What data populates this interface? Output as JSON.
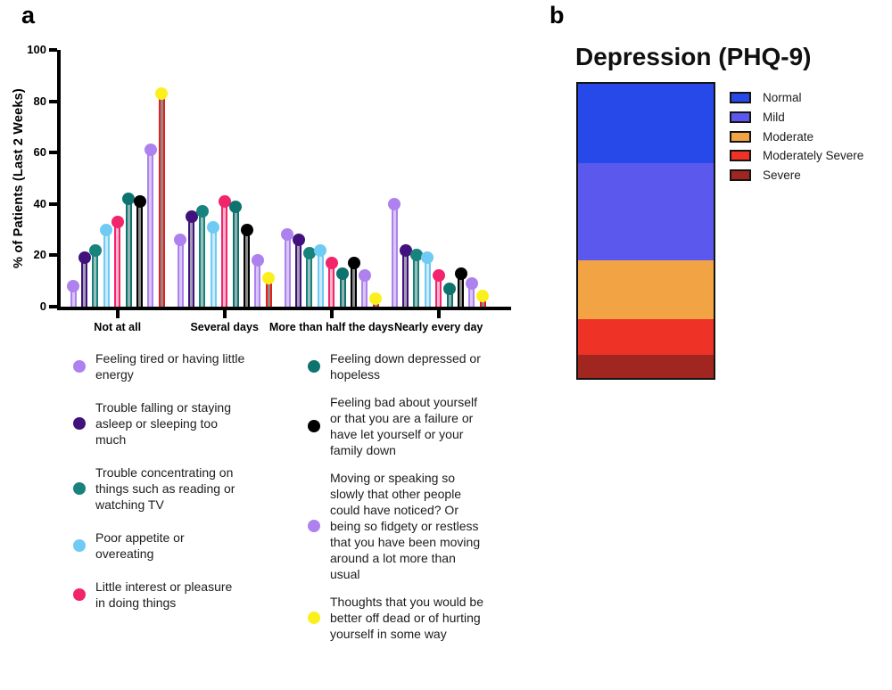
{
  "figure": {
    "panel_a_label": "a",
    "panel_b_label": "b"
  },
  "chart_data": [
    {
      "type": "bar",
      "subtype": "grouped-lollipop",
      "ylabel": "% of Patients (Last 2 Weeks)",
      "ylim": [
        0,
        100
      ],
      "yticks": [
        0,
        20,
        40,
        60,
        80,
        100
      ],
      "grid": false,
      "legend_position": "below-two-columns",
      "categories": [
        "Not at all",
        "Several days",
        "More than half the days",
        "Nearly every day"
      ],
      "series": [
        {
          "name": "Feeling tired or having little energy",
          "marker_color": "#AE82EE",
          "bar_stroke": "#AE82EE",
          "bar_fill": "#D8C6F5",
          "values": [
            8,
            26,
            28,
            40
          ]
        },
        {
          "name": "Trouble falling or staying asleep or sleeping too much",
          "marker_color": "#41127D",
          "bar_stroke": "#41127D",
          "bar_fill": "#A49BB4",
          "values": [
            19,
            35,
            26,
            22
          ]
        },
        {
          "name": "Trouble concentrating on things such as reading or watching TV",
          "marker_color": "#17837C",
          "bar_stroke": "#17837C",
          "bar_fill": "#9BBEBA",
          "values": [
            22,
            37,
            21,
            20
          ]
        },
        {
          "name": "Poor appetite or overeating",
          "marker_color": "#6FCAF4",
          "bar_stroke": "#6FCAF4",
          "bar_fill": "#CBEAFA",
          "values": [
            30,
            31,
            22,
            19
          ]
        },
        {
          "name": "Little interest or pleasure in doing things",
          "marker_color": "#F2246C",
          "bar_stroke": "#F2246C",
          "bar_fill": "#F9B4CD",
          "values": [
            33,
            41,
            17,
            12
          ]
        },
        {
          "name": "Feeling down depressed or hopeless",
          "marker_color": "#0E736F",
          "bar_stroke": "#0E736F",
          "bar_fill": "#91B2AF",
          "values": [
            42,
            39,
            13,
            7
          ]
        },
        {
          "name": "Feeling bad about yourself or that you are a failure or have let yourself or your family down",
          "marker_color": "#000000",
          "bar_stroke": "#000000",
          "bar_fill": "#8C8C8C",
          "values": [
            41,
            30,
            17,
            13
          ]
        },
        {
          "name": "Moving or speaking so slowly that other people could have noticed? Or being so fidgety or restless that you have been moving around a lot more than usual",
          "marker_color": "#AE82EE",
          "bar_stroke": "#AE82EE",
          "bar_fill": "#D8C6F5",
          "values": [
            61,
            18,
            12,
            9
          ]
        },
        {
          "name": "Thoughts that you would be better off dead or of hurting yourself in some way",
          "marker_color": "#FBF01E",
          "bar_stroke": "#EE1C16",
          "bar_fill": "#8C8C8C",
          "values": [
            83,
            11,
            3,
            4
          ]
        }
      ],
      "legend_columns": [
        [
          0,
          1,
          2,
          3,
          4
        ],
        [
          5,
          6,
          7,
          8
        ]
      ]
    },
    {
      "type": "bar",
      "subtype": "stacked-single-column",
      "title": "Depression (PHQ-9)",
      "units": "percent",
      "legend_position": "right",
      "segments": [
        {
          "label": "Normal",
          "color": "#2849EA",
          "value": 27
        },
        {
          "label": "Mild",
          "color": "#5B58EE",
          "value": 33
        },
        {
          "label": "Moderate",
          "color": "#F2A444",
          "value": 20
        },
        {
          "label": "Moderately Severe",
          "color": "#EE3326",
          "value": 12
        },
        {
          "label": "Severe",
          "color": "#A1261F",
          "value": 8
        }
      ]
    }
  ]
}
